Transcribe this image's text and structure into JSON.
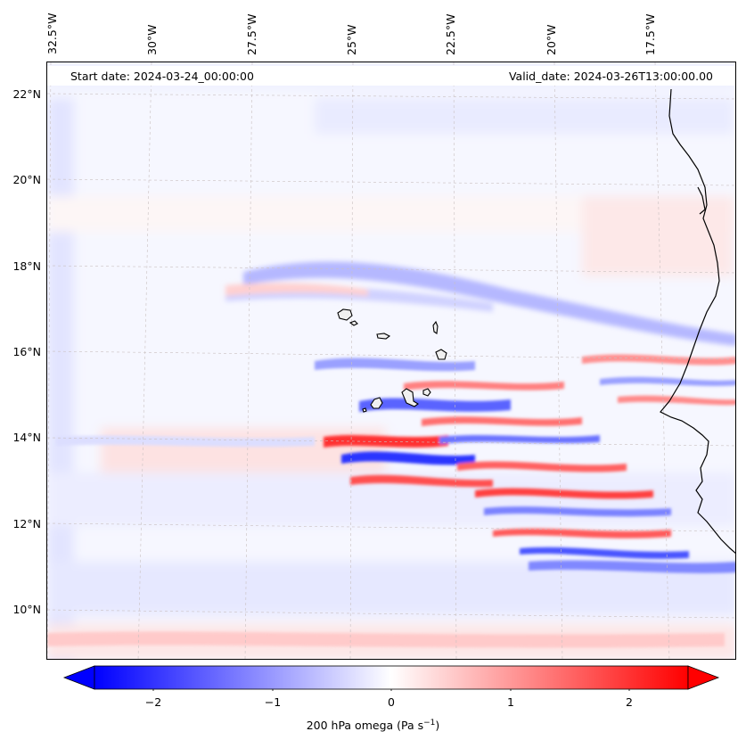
{
  "header": {
    "start_date": "Start date: 2024-03-24_00:00:00",
    "valid_date": "Valid_date: 2024-03-26T13:00:00.00"
  },
  "map": {
    "type": "filled-contour",
    "variable": "200 hPa omega",
    "longitude_labels": [
      "32.5°W",
      "30°W",
      "27.5°W",
      "25°W",
      "22.5°W",
      "20°W",
      "17.5°W"
    ],
    "latitude_labels": [
      "22°N",
      "20°N",
      "18°N",
      "16°N",
      "14°N",
      "12°N",
      "10°N"
    ],
    "extent_lon": [
      -32.5,
      -15.3
    ],
    "extent_lat": [
      8.9,
      22.8
    ],
    "features": [
      "coastline-west-africa",
      "cape-verde-islands"
    ],
    "gridlines": true
  },
  "colorbar": {
    "label_prefix": "200 hPa omega (Pa s",
    "label_sup": "−1",
    "label_suffix": ")",
    "ticks": [
      "−2",
      "−1",
      "0",
      "1",
      "2"
    ],
    "tick_values": [
      -2,
      -1,
      0,
      1,
      2
    ],
    "range": [
      -2.5,
      2.5
    ],
    "extend": "both",
    "colormap": "bwr",
    "color_negative": "#0000ff",
    "color_zero": "#ffffff",
    "color_positive": "#ff0000"
  }
}
